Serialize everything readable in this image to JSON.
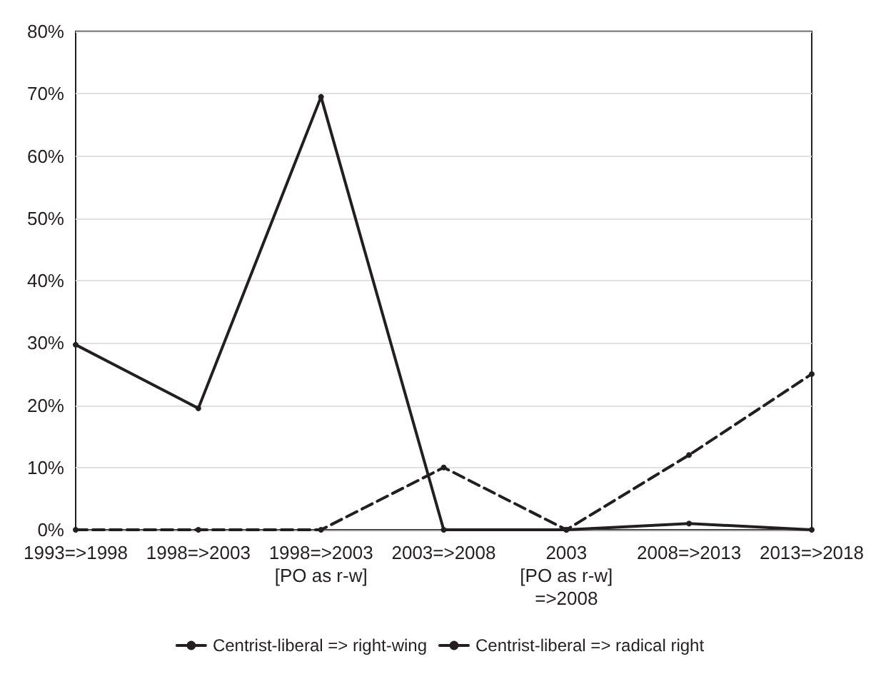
{
  "chart_data": {
    "type": "line",
    "categories": [
      "1993=>1998",
      "1998=>2003",
      "1998=>2003\n[PO as r-w]",
      "2003=>2008",
      "2003\n[PO as r-w]\n=>2008",
      "2008=>2013",
      "2013=>2018"
    ],
    "series": [
      {
        "name": "Centrist-liberal => right-wing",
        "color": "#231f20",
        "line_style": "solid",
        "values": [
          29.7,
          19.5,
          69.5,
          0,
          0,
          1,
          0
        ]
      },
      {
        "name": "Centrist-liberal => radical right",
        "color": "#231f20",
        "line_style": "dashed",
        "values": [
          0,
          0,
          0,
          10,
          0,
          12,
          25
        ]
      }
    ],
    "ylim": [
      0,
      80
    ],
    "yticks": [
      {
        "value": 0,
        "label": "0%"
      },
      {
        "value": 10,
        "label": "10%"
      },
      {
        "value": 20,
        "label": "20%"
      },
      {
        "value": 30,
        "label": "30%"
      },
      {
        "value": 40,
        "label": "40%"
      },
      {
        "value": 50,
        "label": "50%"
      },
      {
        "value": 60,
        "label": "60%"
      },
      {
        "value": 70,
        "label": "70%"
      },
      {
        "value": 80,
        "label": "80%"
      }
    ],
    "grid": "y",
    "legend": "bottom",
    "marker": "circle"
  }
}
